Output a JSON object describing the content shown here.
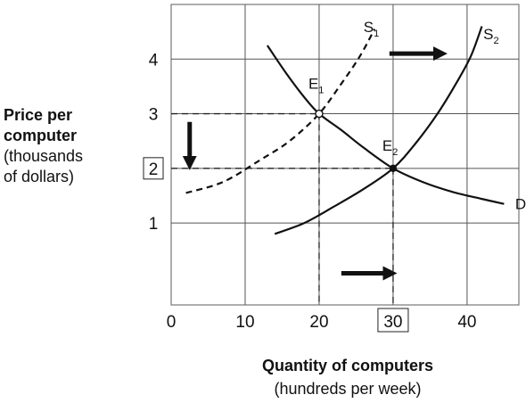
{
  "chart_data": {
    "type": "line",
    "title": "",
    "ylabel": {
      "line1": "Price per",
      "line2": "computer",
      "line3": "(thousands",
      "line4": "of dollars)"
    },
    "xlabel": {
      "line1": "Quantity of computers",
      "line2": "(hundreds per week)"
    },
    "xlim": [
      0,
      47
    ],
    "ylim": [
      -0.5,
      5
    ],
    "x_ticks": [
      {
        "value": 0,
        "label": "0",
        "boxed": false
      },
      {
        "value": 10,
        "label": "10",
        "boxed": false
      },
      {
        "value": 20,
        "label": "20",
        "boxed": false
      },
      {
        "value": 30,
        "label": "30",
        "boxed": true
      },
      {
        "value": 40,
        "label": "40",
        "boxed": false
      }
    ],
    "y_ticks": [
      {
        "value": 1,
        "label": "1",
        "boxed": false
      },
      {
        "value": 2,
        "label": "2",
        "boxed": true
      },
      {
        "value": 3,
        "label": "3",
        "boxed": false
      },
      {
        "value": 4,
        "label": "4",
        "boxed": false
      }
    ],
    "grid": true,
    "series": [
      {
        "id": "s1",
        "label": "S",
        "sub": "1",
        "style": "dashed",
        "x": [
          2,
          7,
          12,
          16,
          20,
          23,
          25.5,
          27.5
        ],
        "y": [
          1.55,
          1.75,
          2.15,
          2.5,
          3.0,
          3.55,
          4.05,
          4.55
        ]
      },
      {
        "id": "s2",
        "label": "S",
        "sub": "2",
        "style": "solid",
        "x": [
          14,
          18,
          22,
          26,
          30,
          33,
          36,
          38.5,
          40.5,
          42
        ],
        "y": [
          0.8,
          1.0,
          1.3,
          1.62,
          2.0,
          2.45,
          3.0,
          3.55,
          4.05,
          4.6
        ]
      },
      {
        "id": "d",
        "label": "D",
        "style": "solid",
        "x": [
          13,
          15.5,
          18,
          20,
          23,
          26,
          30,
          34,
          38,
          42,
          45
        ],
        "y": [
          4.25,
          3.75,
          3.3,
          3.0,
          2.7,
          2.38,
          2.0,
          1.75,
          1.57,
          1.44,
          1.35
        ]
      }
    ],
    "equilibria": [
      {
        "label": "E",
        "sub": "1",
        "x": 20,
        "y": 3,
        "marker": "open"
      },
      {
        "label": "E",
        "sub": "2",
        "x": 30,
        "y": 2,
        "marker": "filled"
      }
    ],
    "arrows": [
      {
        "name": "supply-shift-arrow",
        "from": [
          29.5,
          4.1
        ],
        "to": [
          36,
          4.1
        ]
      },
      {
        "name": "price-fall-arrow",
        "from": [
          2.5,
          2.85
        ],
        "to": [
          2.5,
          2.15
        ]
      },
      {
        "name": "quantity-rise-arrow",
        "from": [
          23,
          0.08
        ],
        "to": [
          29.2,
          0.08
        ]
      }
    ]
  }
}
